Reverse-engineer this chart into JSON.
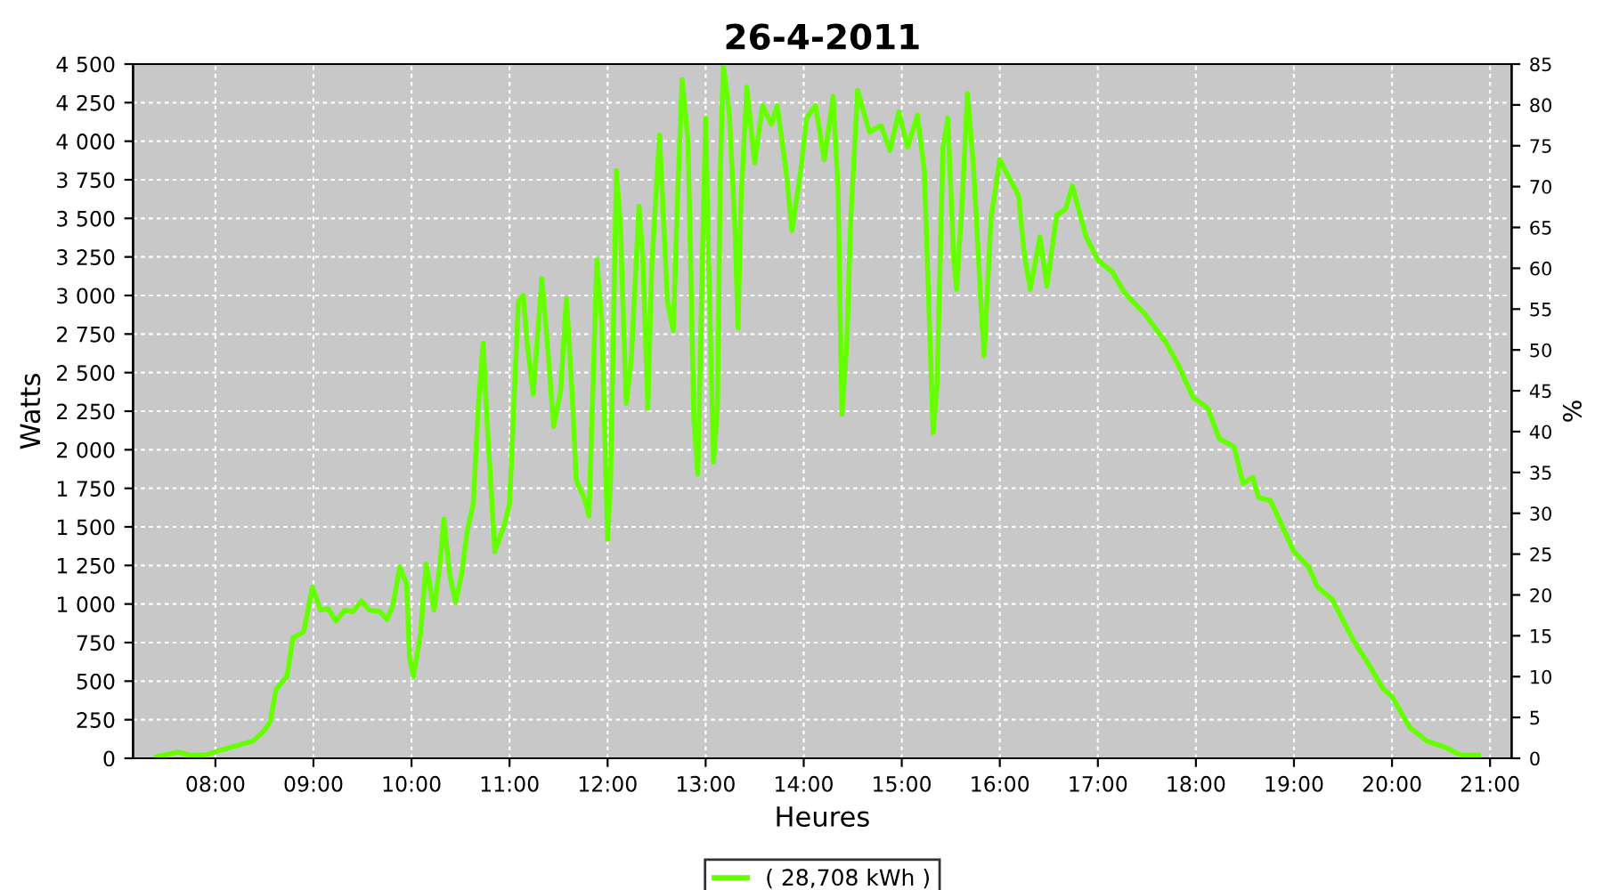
{
  "chart_data": {
    "type": "line",
    "title": "26-4-2011",
    "xlabel": "Heures",
    "ylabel": "Watts",
    "y2label": "%",
    "xlim": [
      7.16,
      21.22
    ],
    "xticks": [
      {
        "value": 8,
        "label": "08:00"
      },
      {
        "value": 9,
        "label": "09:00"
      },
      {
        "value": 10,
        "label": "10:00"
      },
      {
        "value": 11,
        "label": "11:00"
      },
      {
        "value": 12,
        "label": "12:00"
      },
      {
        "value": 13,
        "label": "13:00"
      },
      {
        "value": 14,
        "label": "14:00"
      },
      {
        "value": 15,
        "label": "15:00"
      },
      {
        "value": 16,
        "label": "16:00"
      },
      {
        "value": 17,
        "label": "17:00"
      },
      {
        "value": 18,
        "label": "18:00"
      },
      {
        "value": 19,
        "label": "19:00"
      },
      {
        "value": 20,
        "label": "20:00"
      },
      {
        "value": 21,
        "label": "21:00"
      }
    ],
    "ylim": [
      0,
      4500
    ],
    "yticks": [
      0,
      250,
      500,
      750,
      {
        "value": 1000,
        "label": "1 000"
      },
      {
        "value": 1250,
        "label": "1 250"
      },
      {
        "value": 1500,
        "label": "1 500"
      },
      {
        "value": 1750,
        "label": "1 750"
      },
      {
        "value": 2000,
        "label": "2 000"
      },
      {
        "value": 2250,
        "label": "2 250"
      },
      {
        "value": 2500,
        "label": "2 500"
      },
      {
        "value": 2750,
        "label": "2 750"
      },
      {
        "value": 3000,
        "label": "3 000"
      },
      {
        "value": 3250,
        "label": "3 250"
      },
      {
        "value": 3500,
        "label": "3 500"
      },
      {
        "value": 3750,
        "label": "3 750"
      },
      {
        "value": 4000,
        "label": "4 000"
      },
      {
        "value": 4250,
        "label": "4 250"
      },
      {
        "value": 4500,
        "label": "4 500"
      }
    ],
    "y2lim": [
      0,
      85
    ],
    "y2ticks": [
      0,
      5,
      10,
      15,
      20,
      25,
      30,
      35,
      40,
      45,
      50,
      55,
      60,
      65,
      70,
      75,
      80,
      85
    ],
    "grid": true,
    "legend": "bottom",
    "marker": "none",
    "line_style": "solid",
    "series": [
      {
        "name": "( 28,708 kWh )",
        "color": "#66ff00",
        "x": [
          7.4,
          7.62,
          7.74,
          7.89,
          8.04,
          8.26,
          8.38,
          8.5,
          8.56,
          8.62,
          8.73,
          8.79,
          8.9,
          8.99,
          9.07,
          9.15,
          9.23,
          9.32,
          9.4,
          9.49,
          9.57,
          9.68,
          9.75,
          9.81,
          9.88,
          9.95,
          9.98,
          10.02,
          10.09,
          10.15,
          10.18,
          10.23,
          10.29,
          10.33,
          10.39,
          10.45,
          10.51,
          10.57,
          10.63,
          10.68,
          10.73,
          10.77,
          10.85,
          10.94,
          11.0,
          11.09,
          11.14,
          11.18,
          11.24,
          11.28,
          11.33,
          11.38,
          11.45,
          11.52,
          11.58,
          11.64,
          11.68,
          11.76,
          11.81,
          11.89,
          11.94,
          12.0,
          12.03,
          12.09,
          12.13,
          12.19,
          12.24,
          12.32,
          12.36,
          12.41,
          12.45,
          12.53,
          12.61,
          12.67,
          12.71,
          12.76,
          12.82,
          12.88,
          12.92,
          12.97,
          13.0,
          13.03,
          13.08,
          13.12,
          13.15,
          13.18,
          13.24,
          13.3,
          13.33,
          13.36,
          13.42,
          13.5,
          13.58,
          13.67,
          13.73,
          13.82,
          13.88,
          13.97,
          14.03,
          14.12,
          14.21,
          14.3,
          14.35,
          14.39,
          14.44,
          14.48,
          14.55,
          14.67,
          14.79,
          14.88,
          14.97,
          15.06,
          15.16,
          15.23,
          15.32,
          15.36,
          15.42,
          15.47,
          15.53,
          15.56,
          15.62,
          15.67,
          15.73,
          15.81,
          15.84,
          15.91,
          16.0,
          16.09,
          16.19,
          16.25,
          16.31,
          16.41,
          16.48,
          16.58,
          16.67,
          16.74,
          16.88,
          17.0,
          17.15,
          17.27,
          17.48,
          17.7,
          17.82,
          17.97,
          18.12,
          18.24,
          18.39,
          18.48,
          18.58,
          18.64,
          18.76,
          19.0,
          19.15,
          19.24,
          19.39,
          19.61,
          19.76,
          19.91,
          20.0,
          20.18,
          20.36,
          20.55,
          20.7,
          20.88
        ],
        "values": [
          10,
          40,
          20,
          20,
          50,
          90,
          110,
          180,
          240,
          450,
          530,
          780,
          820,
          1110,
          960,
          970,
          890,
          960,
          950,
          1020,
          960,
          950,
          900,
          990,
          1240,
          1130,
          650,
          530,
          800,
          1260,
          1150,
          960,
          1260,
          1550,
          1190,
          1010,
          1190,
          1480,
          1650,
          2270,
          2690,
          2190,
          1340,
          1500,
          1650,
          2960,
          3000,
          2690,
          2360,
          2690,
          3110,
          2730,
          2150,
          2380,
          2980,
          2340,
          1800,
          1690,
          1570,
          3230,
          2840,
          1420,
          1800,
          3810,
          3460,
          2300,
          2570,
          3580,
          3230,
          2270,
          3190,
          4040,
          2960,
          2770,
          3580,
          4400,
          4000,
          2190,
          1840,
          3310,
          4150,
          3230,
          1920,
          2270,
          3810,
          4500,
          4190,
          3420,
          2790,
          3610,
          4350,
          3860,
          4230,
          4110,
          4230,
          3810,
          3420,
          3810,
          4150,
          4230,
          3880,
          4290,
          3690,
          2230,
          2690,
          3500,
          4330,
          4060,
          4100,
          3940,
          4190,
          3960,
          4170,
          3810,
          2110,
          2420,
          3960,
          4150,
          3230,
          3040,
          3650,
          4310,
          3850,
          2920,
          2610,
          3500,
          3880,
          3770,
          3650,
          3270,
          3040,
          3380,
          3060,
          3520,
          3560,
          3710,
          3380,
          3230,
          3150,
          3020,
          2880,
          2690,
          2550,
          2340,
          2270,
          2070,
          2020,
          1780,
          1820,
          1690,
          1670,
          1340,
          1240,
          1110,
          1030,
          760,
          610,
          450,
          400,
          200,
          110,
          70,
          20,
          20
        ]
      }
    ]
  }
}
